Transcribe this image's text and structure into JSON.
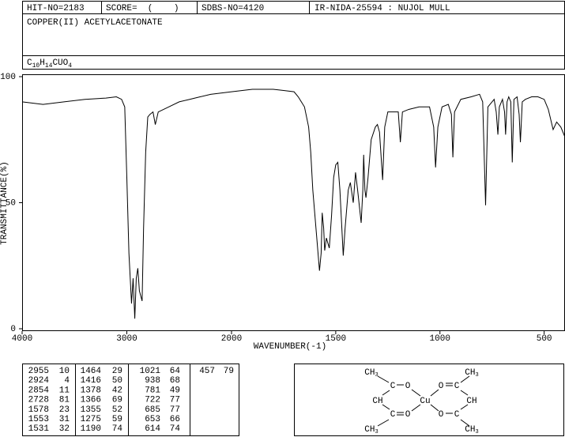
{
  "header": {
    "hit_no": "HIT-NO=2183",
    "score": "SCORE=  (    )",
    "sdbs_no": "SDBS-NO=4120",
    "ir": "IR-NIDA-25594 : NUJOL MULL",
    "name": "COPPER(II) ACETYLACETONATE",
    "formula": [
      {
        "text": "C",
        "sub": "10"
      },
      {
        "text": "H",
        "sub": "14"
      },
      {
        "text": "CUO",
        "sub": "4"
      }
    ]
  },
  "chart_data": {
    "type": "line",
    "x_label": "WAVENUMBER(-1)",
    "y_label": "TRANSMITTANCE(%)",
    "xlim": [
      4000,
      400
    ],
    "xticks": [
      4000,
      3000,
      2000,
      1500,
      1000,
      500
    ],
    "ylim": [
      0,
      100
    ],
    "yticks": [
      0,
      50,
      100
    ],
    "color": "#000000",
    "x": [
      4000,
      3800,
      3600,
      3400,
      3200,
      3100,
      3050,
      3020,
      3000,
      2980,
      2955,
      2940,
      2924,
      2910,
      2895,
      2880,
      2854,
      2840,
      2820,
      2800,
      2780,
      2750,
      2728,
      2700,
      2600,
      2500,
      2400,
      2300,
      2200,
      2000,
      1900,
      1800,
      1750,
      1700,
      1680,
      1650,
      1630,
      1620,
      1610,
      1600,
      1590,
      1578,
      1570,
      1565,
      1558,
      1553,
      1545,
      1531,
      1520,
      1510,
      1500,
      1490,
      1480,
      1464,
      1455,
      1440,
      1430,
      1416,
      1405,
      1395,
      1378,
      1370,
      1366,
      1360,
      1355,
      1345,
      1330,
      1310,
      1300,
      1290,
      1275,
      1265,
      1250,
      1200,
      1190,
      1180,
      1150,
      1100,
      1050,
      1030,
      1021,
      1010,
      990,
      960,
      945,
      938,
      930,
      900,
      850,
      810,
      795,
      781,
      770,
      740,
      730,
      722,
      715,
      700,
      690,
      685,
      678,
      670,
      660,
      653,
      645,
      630,
      620,
      614,
      605,
      590,
      560,
      530,
      500,
      480,
      457,
      440,
      420,
      400
    ],
    "values": [
      90,
      89,
      90,
      91,
      91.5,
      92,
      91,
      88,
      60,
      30,
      10,
      20,
      4,
      20,
      24,
      15,
      11,
      40,
      70,
      84,
      85,
      86,
      81,
      86,
      88,
      90,
      91,
      92,
      93,
      94,
      95,
      95,
      94.5,
      94,
      92,
      88,
      80,
      70,
      55,
      45,
      35,
      23,
      30,
      46,
      40,
      31,
      36,
      32,
      45,
      60,
      65,
      66,
      55,
      29,
      40,
      55,
      58,
      50,
      62,
      55,
      42,
      55,
      69,
      55,
      52,
      60,
      75,
      80,
      81,
      78,
      59,
      80,
      86,
      86,
      74,
      86,
      87,
      88,
      88,
      80,
      64,
      80,
      88,
      89,
      85,
      68,
      86,
      91,
      92,
      93,
      90,
      49,
      88,
      91,
      86,
      77,
      88,
      91,
      86,
      77,
      90,
      92,
      90,
      66,
      91,
      92,
      85,
      74,
      90,
      91,
      92,
      92,
      91,
      87,
      79,
      82,
      80,
      76
    ]
  },
  "peak_table": {
    "columns": [
      [
        [
          2955,
          10
        ],
        [
          2924,
          4
        ],
        [
          2854,
          11
        ],
        [
          2728,
          81
        ],
        [
          1578,
          23
        ],
        [
          1553,
          31
        ],
        [
          1531,
          32
        ]
      ],
      [
        [
          1464,
          29
        ],
        [
          1416,
          50
        ],
        [
          1378,
          42
        ],
        [
          1366,
          69
        ],
        [
          1355,
          52
        ],
        [
          1275,
          59
        ],
        [
          1190,
          74
        ]
      ],
      [
        [
          1021,
          64
        ],
        [
          938,
          68
        ],
        [
          781,
          49
        ],
        [
          722,
          77
        ],
        [
          685,
          77
        ],
        [
          653,
          66
        ],
        [
          614,
          74
        ]
      ],
      [
        [
          457,
          79
        ]
      ]
    ]
  },
  "structure": {
    "atoms": [
      {
        "text": "CH",
        "sub": "3"
      },
      {
        "text": "CH",
        "sub": "3"
      },
      {
        "text": "C"
      },
      {
        "text": "O"
      },
      {
        "text": "O"
      },
      {
        "text": "C"
      },
      {
        "text": "CH"
      },
      {
        "text": "Cu"
      },
      {
        "text": "CH"
      },
      {
        "text": "C"
      },
      {
        "text": "O"
      },
      {
        "text": "O"
      },
      {
        "text": "C"
      },
      {
        "text": "CH",
        "sub": "3"
      },
      {
        "text": "CH",
        "sub": "3"
      }
    ]
  }
}
